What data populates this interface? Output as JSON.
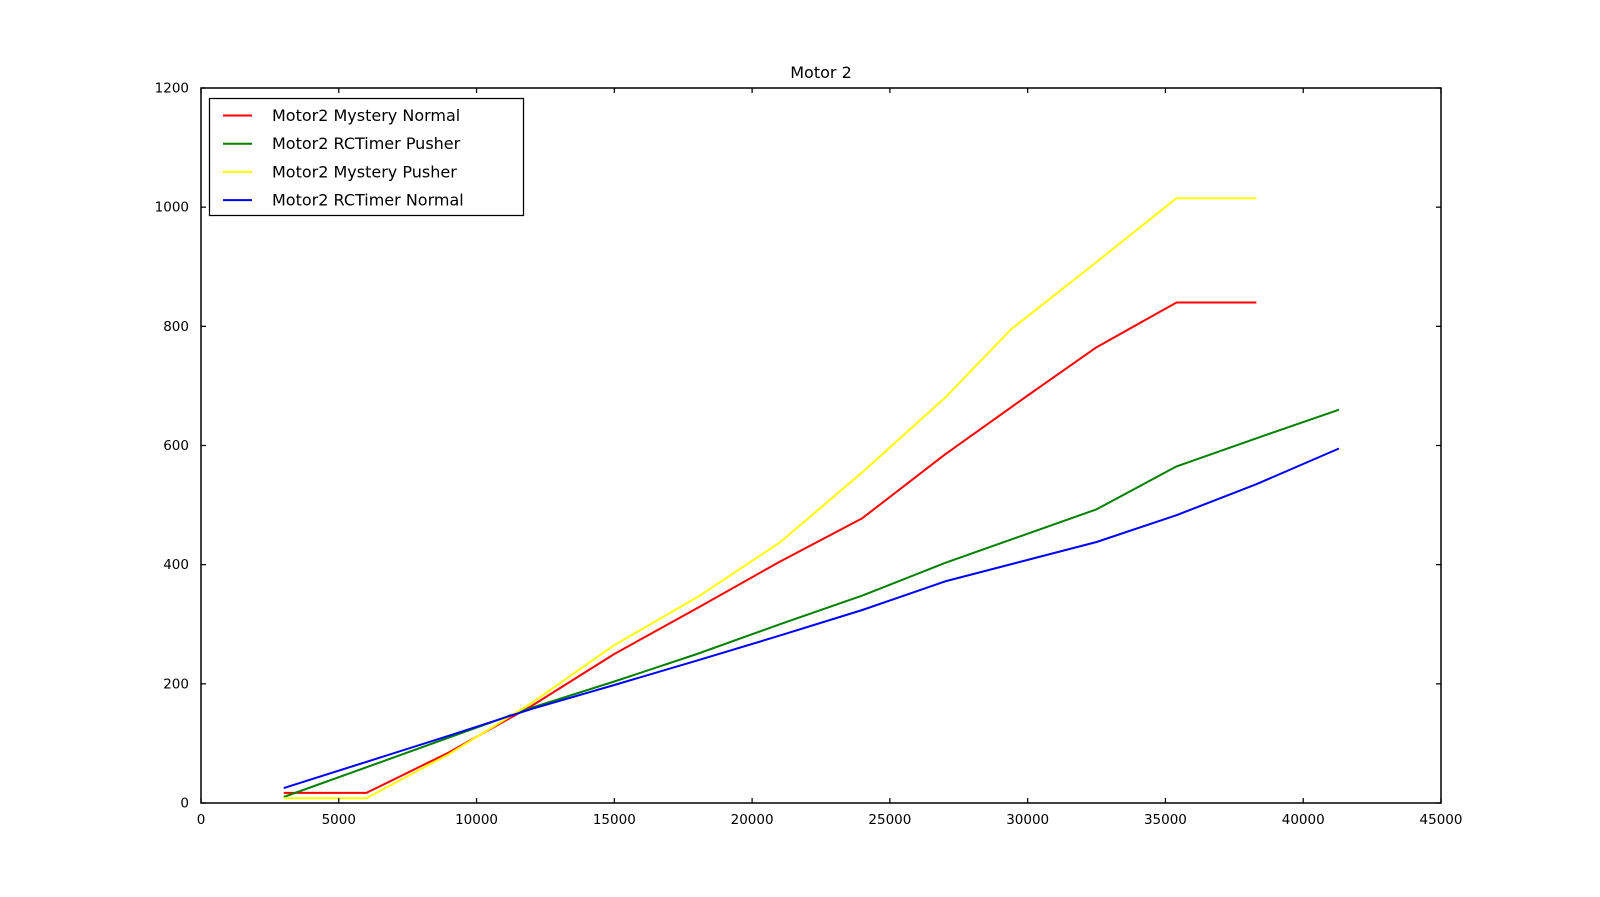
{
  "figure": {
    "background_color": "#ffffff",
    "axis_color": "#000000",
    "text_color": "#000000"
  },
  "chart_data": {
    "type": "line",
    "title": "Motor 2",
    "xlabel": "",
    "ylabel": "",
    "xlim": [
      0,
      45000
    ],
    "ylim": [
      0,
      1200
    ],
    "xticks": [
      0,
      5000,
      10000,
      15000,
      20000,
      25000,
      30000,
      35000,
      40000,
      45000
    ],
    "xtick_labels": [
      "0",
      "5000",
      "10000",
      "15000",
      "20000",
      "25000",
      "30000",
      "35000",
      "40000",
      "45000"
    ],
    "yticks": [
      0,
      200,
      400,
      600,
      800,
      1000,
      1200
    ],
    "ytick_labels": [
      "0",
      "200",
      "400",
      "600",
      "800",
      "1000",
      "1200"
    ],
    "grid": false,
    "legend_position": "upper-left",
    "series": [
      {
        "name": "Motor2 Mystery Normal",
        "color": "#ff0000",
        "points": [
          [
            3000,
            17
          ],
          [
            6000,
            17
          ],
          [
            9000,
            85
          ],
          [
            12000,
            163
          ],
          [
            15000,
            250
          ],
          [
            18000,
            327
          ],
          [
            21000,
            405
          ],
          [
            24000,
            478
          ],
          [
            27000,
            585
          ],
          [
            30000,
            684
          ],
          [
            32500,
            765
          ],
          [
            35400,
            840
          ],
          [
            38300,
            840
          ]
        ]
      },
      {
        "name": "Motor2 RCTimer Pusher",
        "color": "#007f00",
        "points": [
          [
            3000,
            10
          ],
          [
            6000,
            60
          ],
          [
            9000,
            110
          ],
          [
            12000,
            160
          ],
          [
            15000,
            204
          ],
          [
            18000,
            250
          ],
          [
            21000,
            300
          ],
          [
            24000,
            348
          ],
          [
            27000,
            403
          ],
          [
            30000,
            452
          ],
          [
            32500,
            493
          ],
          [
            35400,
            565
          ],
          [
            38300,
            612
          ],
          [
            41300,
            660
          ]
        ]
      },
      {
        "name": "Motor2 Mystery Pusher",
        "color": "#ffff00",
        "points": [
          [
            3000,
            8
          ],
          [
            6000,
            8
          ],
          [
            9000,
            82
          ],
          [
            12000,
            168
          ],
          [
            15000,
            265
          ],
          [
            18000,
            345
          ],
          [
            21000,
            437
          ],
          [
            24000,
            555
          ],
          [
            27000,
            680
          ],
          [
            29400,
            795
          ],
          [
            32500,
            908
          ],
          [
            35400,
            1015
          ],
          [
            38300,
            1015
          ]
        ]
      },
      {
        "name": "Motor2 RCTimer Normal",
        "color": "#0000ff",
        "points": [
          [
            3000,
            25
          ],
          [
            6000,
            69
          ],
          [
            9000,
            113
          ],
          [
            12000,
            158
          ],
          [
            15000,
            198
          ],
          [
            18000,
            239
          ],
          [
            21000,
            281
          ],
          [
            24000,
            324
          ],
          [
            27000,
            372
          ],
          [
            30000,
            408
          ],
          [
            32500,
            438
          ],
          [
            35400,
            483
          ],
          [
            38300,
            535
          ],
          [
            41300,
            595
          ]
        ]
      }
    ]
  }
}
